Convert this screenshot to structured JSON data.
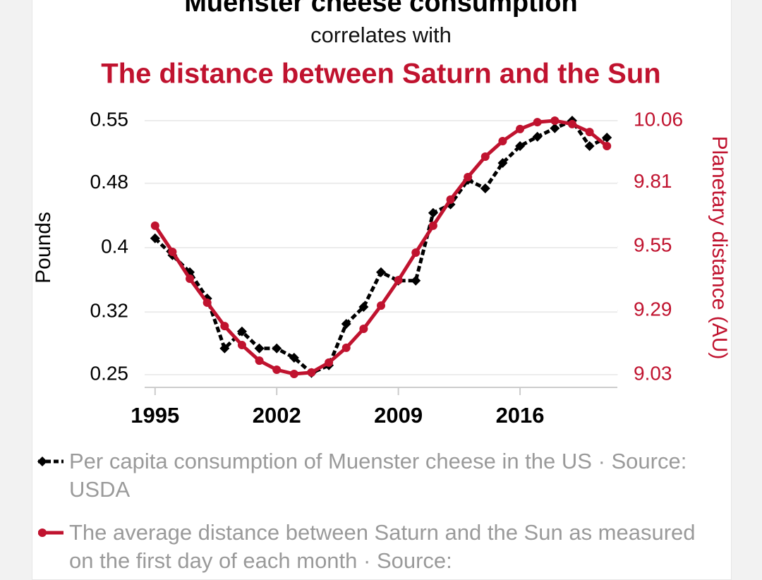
{
  "chart_data": {
    "type": "line",
    "title": "Muenster cheese consumption",
    "subtitle": "correlates with",
    "title2": "The distance between Saturn and the Sun",
    "y_label": "Pounds",
    "y2_label": "Planetary distance (AU)",
    "x": [
      1995,
      1996,
      1997,
      1998,
      1999,
      2000,
      2001,
      2002,
      2003,
      2004,
      2005,
      2006,
      2007,
      2008,
      2009,
      2010,
      2011,
      2012,
      2013,
      2014,
      2015,
      2016,
      2017,
      2018,
      2019,
      2020,
      2021
    ],
    "xlim": [
      1994.4,
      2021.6
    ],
    "xticks": [
      1995,
      2002,
      2009,
      2016
    ],
    "ylim": [
      0.25,
      0.55
    ],
    "yticks": [
      0.25,
      {
        "value": 0.324,
        "label": "0.32"
      },
      0.4,
      {
        "value": 0.476,
        "label": "0.48"
      },
      0.55
    ],
    "y2lim": [
      9.03,
      10.06
    ],
    "y2ticks": [
      9.03,
      9.29,
      9.55,
      9.81,
      10.06
    ],
    "grid": true,
    "series": [
      {
        "name": "Per capita consumption of Muenster cheese in the US · Source: USDA",
        "color": "#000000",
        "marker": "diamond",
        "dashed": true,
        "values": [
          0.411,
          0.391,
          0.371,
          0.34,
          0.281,
          0.301,
          0.281,
          0.281,
          0.27,
          0.252,
          0.261,
          0.31,
          0.33,
          0.371,
          0.361,
          0.361,
          0.441,
          0.451,
          0.48,
          0.47,
          0.5,
          0.52,
          0.531,
          0.541,
          0.55,
          0.52,
          0.53
        ]
      },
      {
        "name": "The average distance between Saturn and the Sun as measured on the first day of each month · Source:",
        "color": "#c0132f",
        "marker": "circle",
        "dashed": false,
        "axis": "y2",
        "values": [
          9.634,
          9.528,
          9.419,
          9.322,
          9.227,
          9.15,
          9.087,
          9.05,
          9.033,
          9.039,
          9.079,
          9.139,
          9.216,
          9.31,
          9.413,
          9.525,
          9.634,
          9.74,
          9.831,
          9.914,
          9.977,
          10.026,
          10.054,
          10.06,
          10.046,
          10.014,
          9.957
        ]
      }
    ]
  }
}
